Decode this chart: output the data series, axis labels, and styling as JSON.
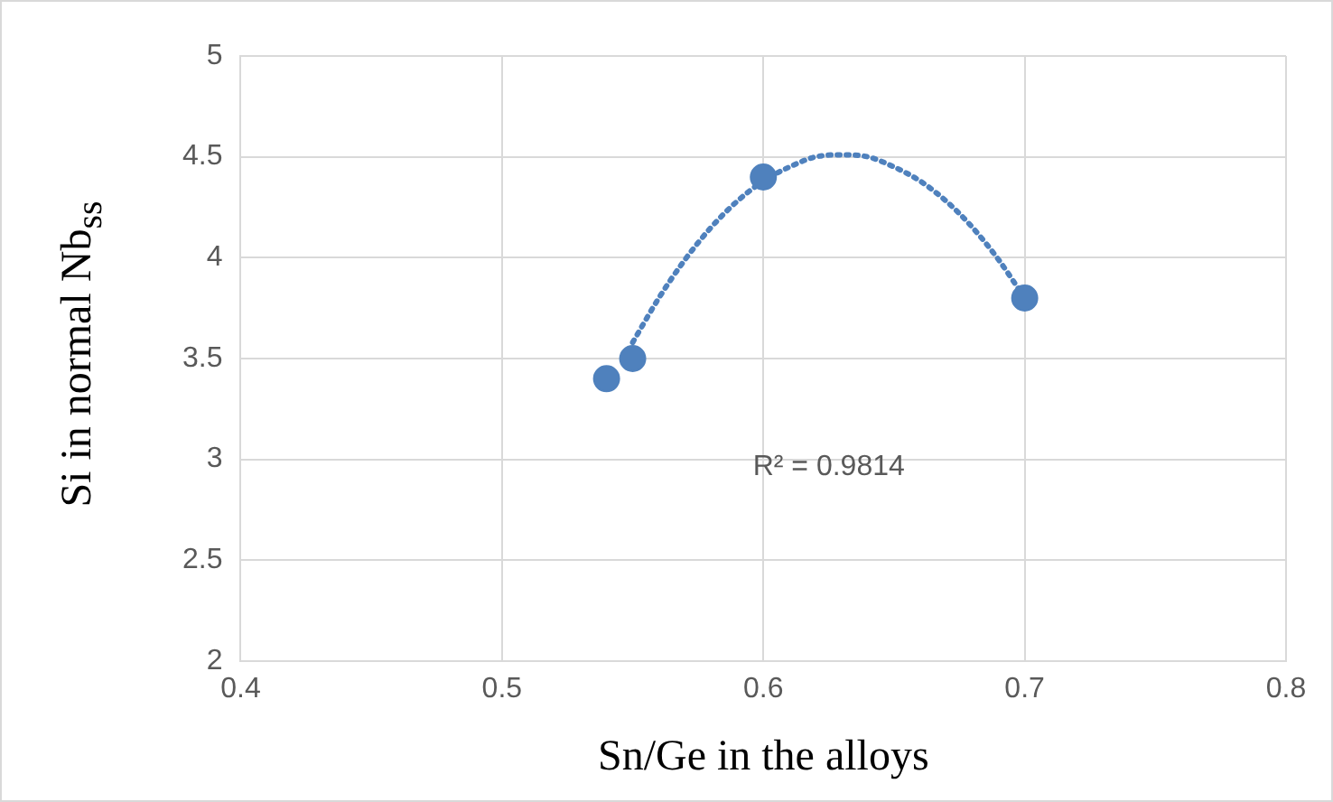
{
  "chart_data": {
    "type": "scatter",
    "xlabel": "Sn/Ge in the alloys",
    "ylabel": "Si in normal Nb$_{ss}$",
    "xlim": [
      0.4,
      0.8
    ],
    "xticks": [
      0.4,
      0.5,
      0.6,
      0.7,
      0.8
    ],
    "ylim": [
      2,
      5
    ],
    "yticks": [
      2,
      2.5,
      3,
      3.5,
      4,
      4.5,
      5
    ],
    "grid": true,
    "legend": false,
    "marker": "circle",
    "series": [
      {
        "type": "line",
        "line_style": "dotted",
        "marker": "none",
        "color": "#4f81bd",
        "x": [
          0.55,
          0.56,
          0.57,
          0.58,
          0.59,
          0.6,
          0.61,
          0.62,
          0.63,
          0.64,
          0.65,
          0.66,
          0.67,
          0.68,
          0.69,
          0.7
        ],
        "values": [
          3.58,
          3.8,
          3.99,
          4.15,
          4.28,
          4.38,
          4.45,
          4.5,
          4.51,
          4.5,
          4.45,
          4.38,
          4.28,
          4.15,
          3.99,
          3.8
        ]
      },
      {
        "type": "scatter",
        "color": "#4f81bd",
        "x": [
          0.54,
          0.55,
          0.6,
          0.7
        ],
        "values": [
          3.4,
          3.5,
          4.4,
          3.8
        ]
      }
    ],
    "annotations": [
      "R² = 0.9814"
    ]
  }
}
